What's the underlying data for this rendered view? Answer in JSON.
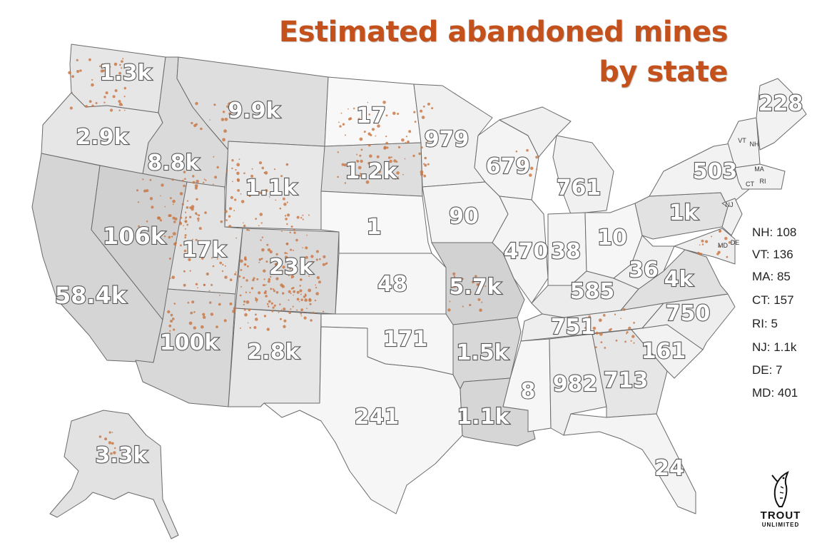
{
  "title": {
    "line1": "Estimated abandoned mines",
    "line2": "by state"
  },
  "colors": {
    "title": "#c4511b",
    "mine_dots": "#c8733e",
    "state_light": "#f4f4f4",
    "state_mid": "#e2e2e2",
    "state_dark": "#cfcfcf",
    "border": "#6a6a6a"
  },
  "states": {
    "WA": {
      "label": "1.3k"
    },
    "OR": {
      "label": "2.9k"
    },
    "CA": {
      "label": "58.4k"
    },
    "ID": {
      "label": "8.8k"
    },
    "NV": {
      "label": "106k"
    },
    "MT": {
      "label": "9.9k"
    },
    "WY": {
      "label": "1.1k"
    },
    "UT": {
      "label": "17k"
    },
    "CO": {
      "label": "23k"
    },
    "AZ": {
      "label": "100k"
    },
    "NM": {
      "label": "2.8k"
    },
    "ND": {
      "label": "17"
    },
    "SD": {
      "label": "1.2k"
    },
    "NE": {
      "label": "1"
    },
    "KS": {
      "label": "48"
    },
    "OK": {
      "label": "171"
    },
    "TX": {
      "label": "241"
    },
    "MN": {
      "label": "979"
    },
    "IA": {
      "label": "90"
    },
    "MO": {
      "label": "5.7k"
    },
    "AR": {
      "label": "1.5k"
    },
    "LA": {
      "label": "1.1k"
    },
    "WI": {
      "label": "679"
    },
    "IL": {
      "label": "470"
    },
    "MI": {
      "label": "761"
    },
    "IN": {
      "label": "38"
    },
    "OH": {
      "label": "10"
    },
    "KY": {
      "label": "585"
    },
    "TN": {
      "label": "751"
    },
    "MS": {
      "label": "8"
    },
    "AL": {
      "label": "982"
    },
    "GA": {
      "label": "713"
    },
    "FL": {
      "label": "24"
    },
    "SC": {
      "label": "161"
    },
    "NC": {
      "label": "750"
    },
    "VA": {
      "label": "4k"
    },
    "WV": {
      "label": "36"
    },
    "PA": {
      "label": "1k"
    },
    "NY": {
      "label": "503"
    },
    "ME": {
      "label": "228"
    },
    "AK": {
      "label": "3.3k"
    }
  },
  "small_state_abbrs": [
    "VT",
    "NH",
    "MA",
    "CT",
    "RI",
    "NJ",
    "MD",
    "DE"
  ],
  "legend": [
    "NH: 108",
    "VT: 136",
    "MA: 85",
    "CT: 157",
    "RI: 5",
    "NJ: 1.1k",
    "DE: 7",
    "MD: 401"
  ],
  "logo": {
    "line1": "TROUT",
    "line2": "UNLIMITED"
  }
}
